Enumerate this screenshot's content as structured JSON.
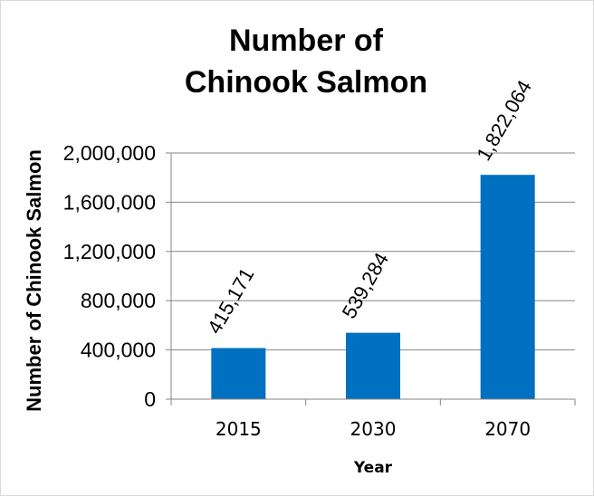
{
  "chart_data": {
    "type": "bar",
    "title_lines": [
      "Number of",
      "Chinook Salmon"
    ],
    "xlabel": "Year",
    "ylabel": "Number of Chinook Salmon",
    "categories": [
      "2015",
      "2030",
      "2070"
    ],
    "values": [
      415171,
      539284,
      1822064
    ],
    "data_labels": [
      "415,171",
      "539,284",
      "1,822,064"
    ],
    "ylim": [
      0,
      2000000
    ],
    "yticks": [
      0,
      400000,
      800000,
      1200000,
      1600000,
      2000000
    ],
    "ytick_labels": [
      "0",
      "400,000",
      "800,000",
      "1,200,000",
      "1,600,000",
      "2,000,000"
    ],
    "grid": true,
    "legend": "none",
    "bar_color": "#0070C0"
  }
}
